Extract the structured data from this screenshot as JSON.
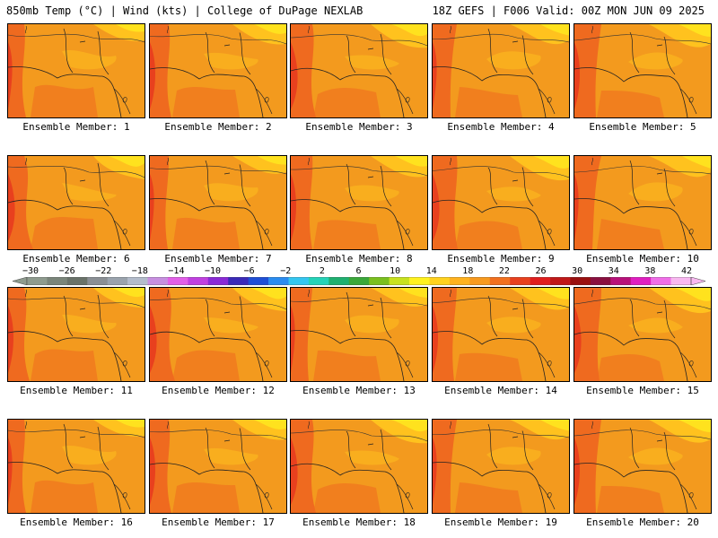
{
  "header": {
    "left": "850mb Temp (°C) | Wind (kts) | College of DuPage NEXLAB",
    "right": "18Z GEFS | F006 Valid: 00Z MON JUN 09 2025"
  },
  "members": [
    {
      "label": "Ensemble Member: 1"
    },
    {
      "label": "Ensemble Member: 2"
    },
    {
      "label": "Ensemble Member: 3"
    },
    {
      "label": "Ensemble Member: 4"
    },
    {
      "label": "Ensemble Member: 5"
    },
    {
      "label": "Ensemble Member: 6"
    },
    {
      "label": "Ensemble Member: 7"
    },
    {
      "label": "Ensemble Member: 8"
    },
    {
      "label": "Ensemble Member: 9"
    },
    {
      "label": "Ensemble Member: 10"
    },
    {
      "label": "Ensemble Member: 11"
    },
    {
      "label": "Ensemble Member: 12"
    },
    {
      "label": "Ensemble Member: 13"
    },
    {
      "label": "Ensemble Member: 14"
    },
    {
      "label": "Ensemble Member: 15"
    },
    {
      "label": "Ensemble Member: 16"
    },
    {
      "label": "Ensemble Member: 17"
    },
    {
      "label": "Ensemble Member: 18"
    },
    {
      "label": "Ensemble Member: 19"
    },
    {
      "label": "Ensemble Member: 20"
    }
  ],
  "colorbar": {
    "tick_labels": [
      "-30",
      "-26",
      "-22",
      "-18",
      "-14",
      "-10",
      "-6",
      "-2",
      "2",
      "6",
      "10",
      "14",
      "18",
      "22",
      "26",
      "30",
      "34",
      "38",
      "42"
    ],
    "colors": [
      "#8e9b8e",
      "#7a857a",
      "#697269",
      "#8a8f94",
      "#9aa3ad",
      "#b3bccb",
      "#c78fe0",
      "#e25fe8",
      "#c040e0",
      "#8a2ad6",
      "#3a2ab8",
      "#1f4fd6",
      "#2a8cf0",
      "#34c6f0",
      "#24d3b8",
      "#1fb070",
      "#3aa83a",
      "#7ac01e",
      "#c8e21e",
      "#fff21e",
      "#ffd21e",
      "#ffb21e",
      "#f79a1e",
      "#f2701e",
      "#e8401e",
      "#e01e1e",
      "#c01818",
      "#9a1010",
      "#8a1040",
      "#b8107a",
      "#e01ec0",
      "#f06ee8",
      "#f8b8f0"
    ]
  },
  "map_colors": {
    "base": "#f39a1e",
    "warm": "#ef6a1f",
    "hot": "#e8401e",
    "cool": "#ffc21e",
    "cooler": "#ffe21e"
  }
}
